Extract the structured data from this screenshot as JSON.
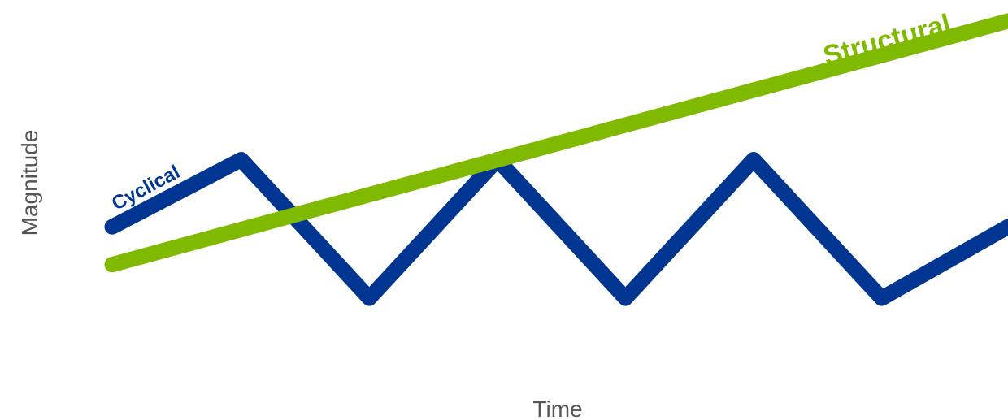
{
  "chart_data": {
    "type": "line",
    "title": "",
    "xlabel": "Time",
    "ylabel": "Magnitude",
    "grid": false,
    "legend": "none",
    "xlim": [
      0,
      10
    ],
    "ylim": [
      0,
      10
    ],
    "series": [
      {
        "name": "Cyclical",
        "color": "#003591",
        "x": [
          0,
          1.44,
          2.87,
          4.3,
          5.73,
          7.16,
          8.59,
          10
        ],
        "y": [
          4.6,
          6.2,
          2.9,
          6.2,
          2.9,
          6.2,
          2.9,
          4.6
        ]
      },
      {
        "name": "Structural",
        "color": "#7fba00",
        "x": [
          0,
          10
        ],
        "y": [
          3.7,
          9.5
        ]
      }
    ]
  }
}
